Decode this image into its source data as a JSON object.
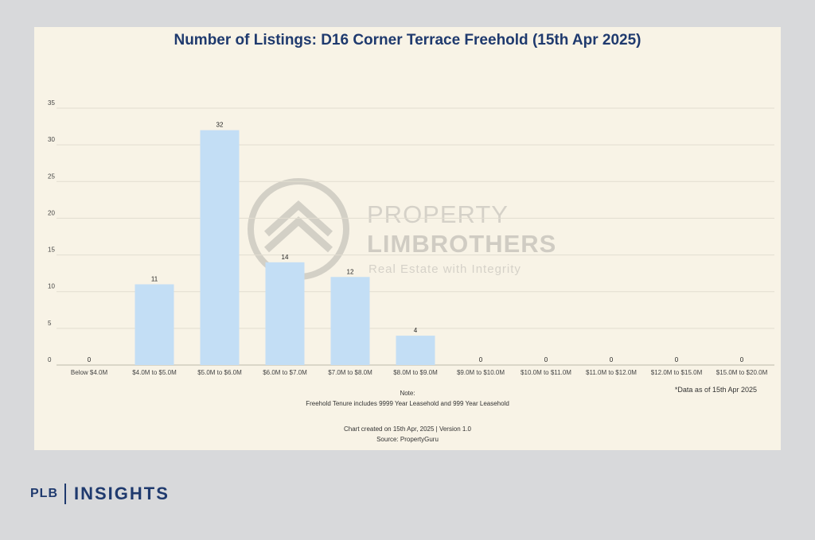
{
  "chart_data": {
    "type": "bar",
    "title": "Number of Listings: D16 Corner Terrace Freehold (15th Apr 2025)",
    "categories": [
      "Below $4.0M",
      "$4.0M to $5.0M",
      "$5.0M to $6.0M",
      "$6.0M to $7.0M",
      "$7.0M to $8.0M",
      "$8.0M to $9.0M",
      "$9.0M to $10.0M",
      "$10.0M to $11.0M",
      "$11.0M to $12.0M",
      "$12.0M to $15.0M",
      "$15.0M to $20.0M"
    ],
    "values": [
      0,
      11,
      32,
      14,
      12,
      4,
      0,
      0,
      0,
      0,
      0
    ],
    "yticks": [
      0,
      5,
      10,
      15,
      20,
      25,
      30,
      35
    ],
    "ylim": [
      0,
      35
    ],
    "grid": true,
    "bar_color": "#c3def5"
  },
  "watermark": {
    "line1": "PROPERTY",
    "line2": "LIMBROTHERS",
    "line3": "Real Estate with Integrity"
  },
  "notes": {
    "as_of": "*Data as of 15th Apr 2025",
    "note_label": "Note:",
    "note_text": "Freehold Tenure includes 9999 Year Leasehold and 999 Year Leasehold",
    "created": "Chart created on 15th Apr, 2025 | Version 1.0",
    "source": "Source: PropertyGuru"
  },
  "brand": {
    "plb": "PLB",
    "insights": "INSIGHTS"
  }
}
